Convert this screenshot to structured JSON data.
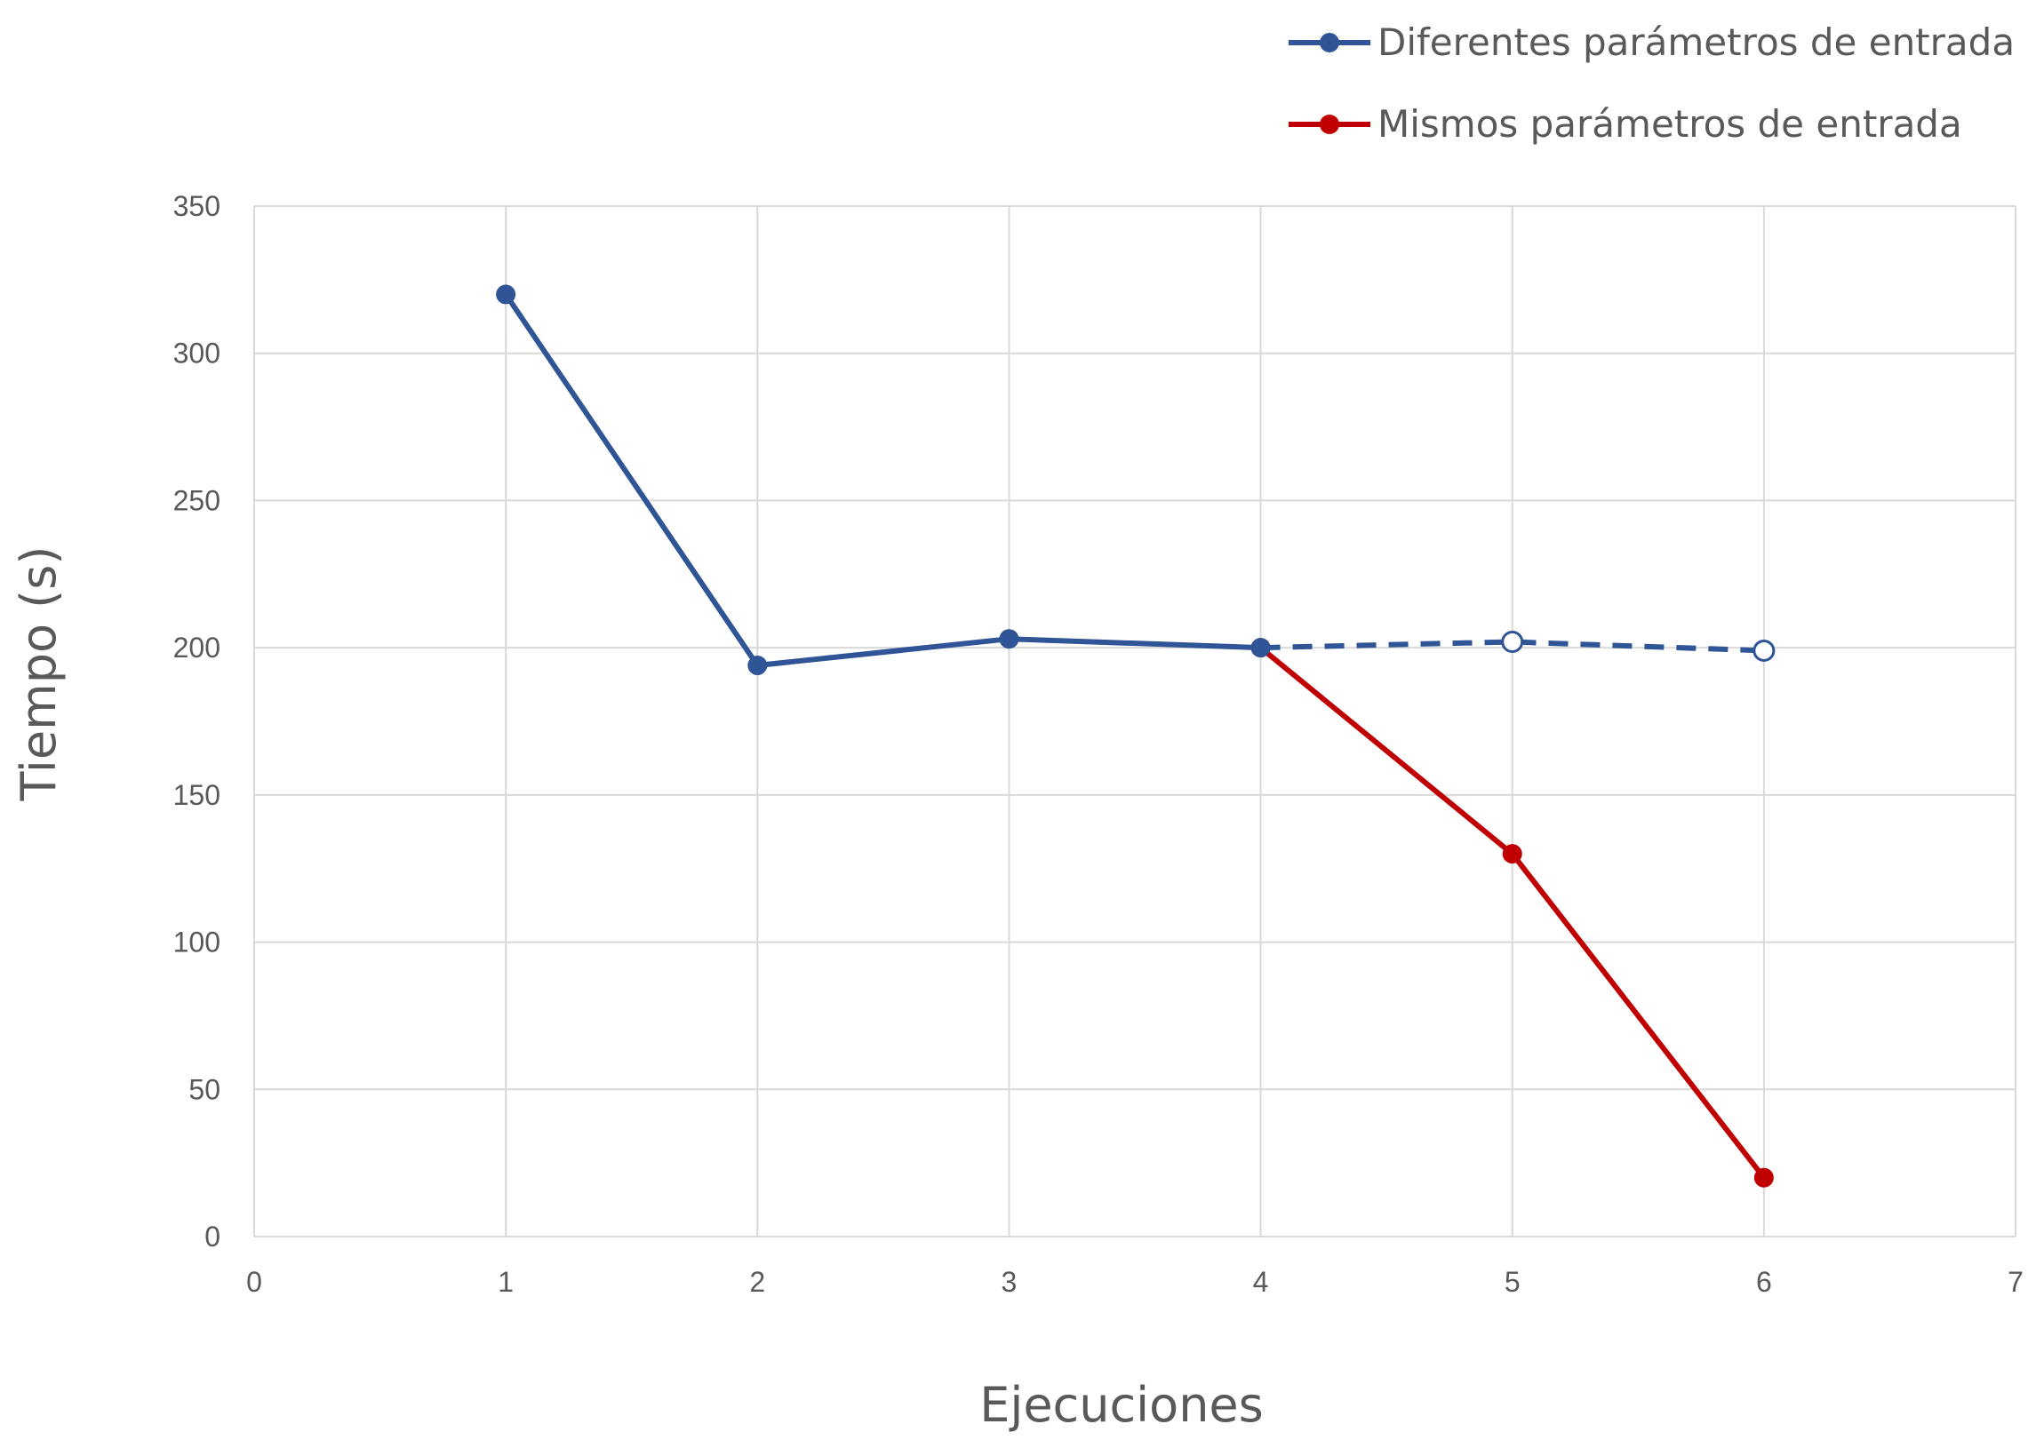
{
  "chart_data": {
    "type": "line",
    "xlabel": "Ejecuciones",
    "ylabel": "Tiempo (s)",
    "xlim": [
      0,
      7
    ],
    "ylim": [
      0,
      350
    ],
    "x_ticks": [
      "0",
      "1",
      "2",
      "3",
      "4",
      "5",
      "6",
      "7"
    ],
    "y_ticks": [
      "0",
      "50",
      "100",
      "150",
      "200",
      "250",
      "300",
      "350"
    ],
    "grid": true,
    "legend_position": "top-right",
    "series": [
      {
        "name": "Diferentes parámetros de entrada",
        "color": "#2f5597",
        "x": [
          1,
          2,
          3,
          4
        ],
        "y": [
          320,
          194,
          203,
          200
        ],
        "projected": {
          "x": [
            4,
            5,
            6
          ],
          "y": [
            200,
            202,
            199
          ],
          "style": "dashed",
          "markers": "hollow"
        }
      },
      {
        "name": "Mismos parámetros de entrada",
        "color": "#c00000",
        "x": [
          4,
          5,
          6
        ],
        "y": [
          200,
          130,
          20
        ]
      }
    ]
  }
}
